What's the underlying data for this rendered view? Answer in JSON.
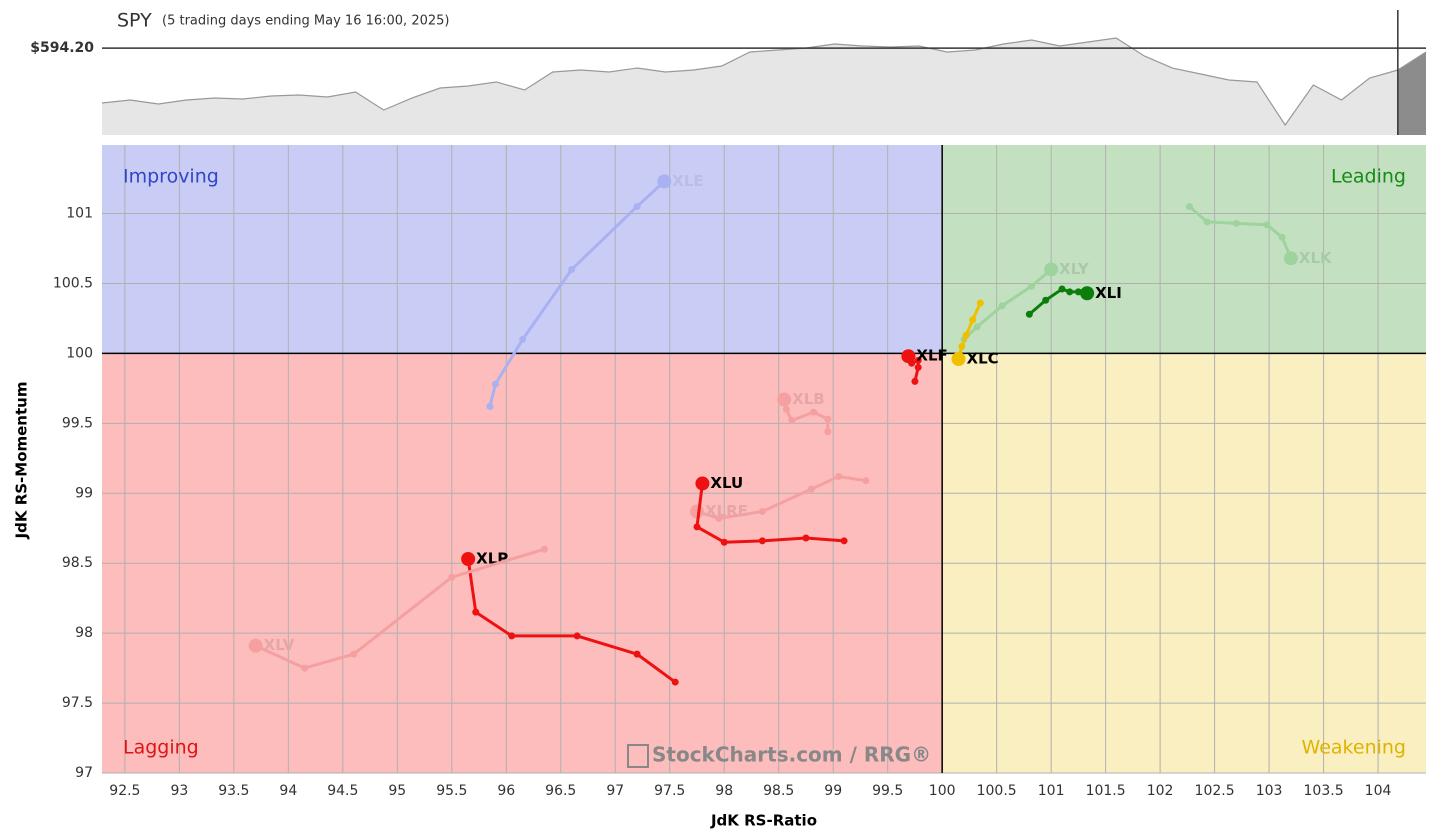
{
  "chart_data": [
    {
      "type": "area",
      "title": "SPY",
      "subtitle": "(5 trading days ending May 16 16:00, 2025)",
      "color": "#999999",
      "fill": "#e6e6e6",
      "highlight_fill": "#8c8c8c",
      "ylim": [
        581,
        600
      ],
      "reference": {
        "value": 594.2,
        "label": "$594.20"
      },
      "values": [
        585.86,
        586.32,
        585.71,
        586.32,
        586.62,
        586.47,
        586.93,
        587.08,
        586.78,
        587.54,
        584.8,
        586.62,
        588.14,
        588.45,
        589.06,
        587.84,
        590.58,
        590.88,
        590.58,
        591.18,
        590.58,
        590.88,
        591.49,
        593.62,
        593.92,
        594.22,
        594.83,
        594.53,
        594.38,
        594.53,
        593.62,
        593.92,
        594.83,
        595.44,
        594.53,
        595.14,
        595.74,
        593.01,
        591.18,
        590.27,
        589.36,
        589.06,
        582.52,
        588.6,
        586.32,
        589.66,
        590.88,
        593.62
      ]
    },
    {
      "type": "rrg",
      "x_label": "JdK RS-Ratio",
      "y_label": "JdK RS-Momentum",
      "watermark": "StockCharts.com / RRG®",
      "xlim": [
        92.29,
        104.44
      ],
      "ylim": [
        97,
        101.49
      ],
      "center": [
        100,
        100
      ],
      "grid": true,
      "xticks": [
        92.5,
        93,
        93.5,
        94,
        94.5,
        95,
        95.5,
        96,
        96.5,
        97,
        97.5,
        98,
        98.5,
        99,
        99.5,
        100,
        100.5,
        101,
        101.5,
        102,
        102.5,
        103,
        103.5,
        104
      ],
      "yticks": [
        97,
        97.5,
        98,
        98.5,
        99,
        99.5,
        100,
        100.5,
        101
      ],
      "quadrants": [
        {
          "name": "Improving",
          "fill": "#c9cdf6",
          "color": "#3344c4",
          "corner": "top-left"
        },
        {
          "name": "Leading",
          "fill": "#c3e1c1",
          "color": "#168a16",
          "corner": "top-right"
        },
        {
          "name": "Lagging",
          "fill": "#fdbdbd",
          "color": "#e01414",
          "corner": "bottom-left"
        },
        {
          "name": "Weakening",
          "fill": "#faefc1",
          "color": "#e0b300",
          "corner": "bottom-right"
        }
      ],
      "series": [
        {
          "name": "XLE",
          "color": "#a9b1f2",
          "label_color": "#b9bde8",
          "x": [
            95.85,
            95.9,
            96.15,
            96.6,
            97.2,
            97.45
          ],
          "values": [
            99.62,
            99.78,
            100.1,
            100.6,
            101.05,
            101.23
          ]
        },
        {
          "name": "XLK",
          "color": "#9fd39d",
          "label_color": "#a9c9a8",
          "x": [
            102.27,
            102.43,
            102.7,
            102.98,
            103.12,
            103.2
          ],
          "values": [
            101.05,
            100.94,
            100.93,
            100.92,
            100.83,
            100.68
          ]
        },
        {
          "name": "XLY",
          "color": "#9fd39d",
          "label_color": "#a9c9a8",
          "x": [
            100.2,
            100.32,
            100.55,
            100.82,
            101.0
          ],
          "values": [
            100.1,
            100.19,
            100.34,
            100.48,
            100.6
          ]
        },
        {
          "name": "XLI",
          "color": "#0a7d0a",
          "label_color": "#000000",
          "x": [
            100.8,
            100.95,
            101.1,
            101.17,
            101.25,
            101.33
          ],
          "values": [
            100.28,
            100.38,
            100.46,
            100.44,
            100.44,
            100.43
          ]
        },
        {
          "name": "XLC",
          "color": "#f0c000",
          "label_color": "#000000",
          "x": [
            100.35,
            100.28,
            100.22,
            100.18,
            100.15
          ],
          "values": [
            100.36,
            100.24,
            100.13,
            100.05,
            99.96
          ]
        },
        {
          "name": "XLF",
          "color": "#ee1111",
          "label_color": "#000000",
          "x": [
            99.75,
            99.78,
            99.78,
            99.72,
            99.69
          ],
          "values": [
            99.8,
            99.9,
            99.95,
            99.93,
            99.98
          ]
        },
        {
          "name": "XLB",
          "color": "#f5a0a0",
          "label_color": "#e6a6a6",
          "x": [
            98.95,
            98.95,
            98.82,
            98.62,
            98.57,
            98.55
          ],
          "values": [
            99.44,
            99.53,
            99.58,
            99.52,
            99.6,
            99.67
          ]
        },
        {
          "name": "XLRE",
          "color": "#f5a0a0",
          "label_color": "#e6a6a6",
          "x": [
            99.3,
            99.05,
            98.8,
            98.35,
            97.95,
            97.75
          ],
          "values": [
            99.09,
            99.12,
            99.03,
            98.87,
            98.82,
            98.87
          ]
        },
        {
          "name": "XLU",
          "color": "#ee1111",
          "label_color": "#000000",
          "x": [
            99.1,
            98.75,
            98.35,
            98.0,
            97.75,
            97.8
          ],
          "values": [
            98.66,
            98.68,
            98.66,
            98.65,
            98.76,
            99.07
          ]
        },
        {
          "name": "XLP",
          "color": "#ee1111",
          "label_color": "#000000",
          "x": [
            97.55,
            97.2,
            96.65,
            96.05,
            95.72,
            95.65
          ],
          "values": [
            97.65,
            97.85,
            97.98,
            97.98,
            98.15,
            98.53
          ]
        },
        {
          "name": "XLV",
          "color": "#f5a0a0",
          "label_color": "#e6a6a6",
          "x": [
            96.35,
            95.5,
            94.6,
            94.15,
            93.7
          ],
          "values": [
            98.6,
            98.4,
            97.85,
            97.75,
            97.91
          ]
        }
      ]
    }
  ]
}
